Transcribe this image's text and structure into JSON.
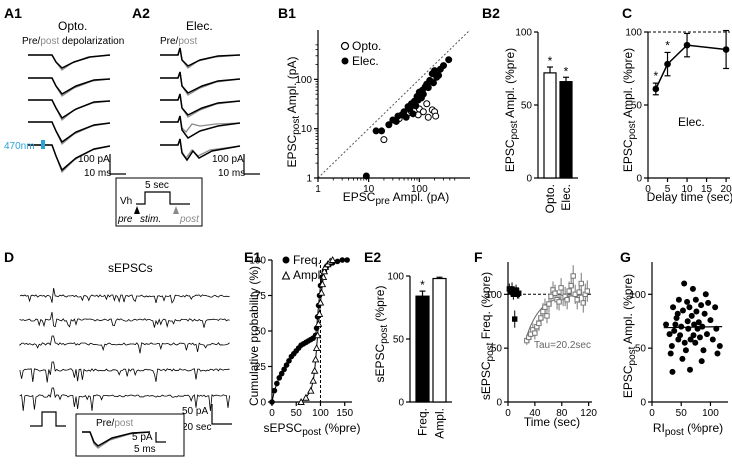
{
  "panels": {
    "a1": {
      "label": "A1",
      "title": "Opto.",
      "sub_pre": "Pre/",
      "sub_post": "post",
      "sub_rest": " depolarization",
      "light": "470nm",
      "scale_y": "100 pA",
      "scale_x": "10 ms"
    },
    "a2": {
      "label": "A2",
      "title": "Elec.",
      "sub_pre": "Pre/",
      "sub_post": "post",
      "scale_y": "100 pA",
      "scale_x": "10 ms",
      "inset": {
        "dur": "5 sec",
        "vh": "Vh",
        "pre": "pre",
        "stim": "stim.",
        "post": "post"
      }
    },
    "b1": {
      "label": "B1",
      "legend": [
        "Opto.",
        "Elec."
      ]
    },
    "b2": {
      "label": "B2"
    },
    "c": {
      "label": "C",
      "annot": "Elec."
    },
    "d": {
      "label": "D",
      "title": "sEPSCs",
      "scale_y": "50 pA",
      "scale_x": "20 sec",
      "inset": {
        "pre": "Pre/",
        "post": "post",
        "scale_y": "5 pA",
        "scale_x": "5 ms"
      }
    },
    "e1": {
      "label": "E1",
      "legend": [
        "Freq.",
        "Ampl."
      ]
    },
    "e2": {
      "label": "E2"
    },
    "f": {
      "label": "F",
      "annot": "Tau=20.2sec"
    },
    "g": {
      "label": "G"
    }
  },
  "colors": {
    "post": "#8a8a8a",
    "light": "#2aa4d8",
    "black": "#000000"
  },
  "chart_data": [
    {
      "id": "B1",
      "type": "scatter",
      "xscale": "log",
      "yscale": "log",
      "xlabel": {
        "a": "EPSC",
        "sub": "pre",
        "b": " Ampl. (pA)"
      },
      "ylabel": {
        "a": "EPSC",
        "sub": "post",
        "b": " Ampl. (pA)"
      },
      "xlim": [
        1,
        1000
      ],
      "ylim": [
        1,
        1000
      ],
      "xticks": [
        1,
        10,
        100
      ],
      "yticks": [
        1,
        10,
        100
      ],
      "series": [
        {
          "name": "Opto.",
          "marker": "open",
          "points": [
            [
              20,
              6
            ],
            [
              40,
              16
            ],
            [
              55,
              19
            ],
            [
              62,
              21
            ],
            [
              70,
              22
            ],
            [
              80,
              23
            ],
            [
              95,
              19
            ],
            [
              100,
              25
            ],
            [
              120,
              22
            ],
            [
              140,
              32
            ],
            [
              150,
              17
            ],
            [
              180,
              24
            ],
            [
              200,
              22
            ],
            [
              210,
              18
            ]
          ]
        },
        {
          "name": "Elec.",
          "marker": "filled",
          "points": [
            [
              9,
              1.1
            ],
            [
              14,
              9
            ],
            [
              18,
              9
            ],
            [
              25,
              12
            ],
            [
              30,
              15
            ],
            [
              35,
              14
            ],
            [
              38,
              18
            ],
            [
              45,
              19
            ],
            [
              50,
              22
            ],
            [
              55,
              17
            ],
            [
              60,
              28
            ],
            [
              65,
              25
            ],
            [
              70,
              32
            ],
            [
              75,
              20
            ],
            [
              80,
              36
            ],
            [
              85,
              29
            ],
            [
              90,
              45
            ],
            [
              95,
              38
            ],
            [
              100,
              55
            ],
            [
              110,
              42
            ],
            [
              115,
              60
            ],
            [
              120,
              50
            ],
            [
              130,
              70
            ],
            [
              140,
              80
            ],
            [
              150,
              68
            ],
            [
              160,
              95
            ],
            [
              170,
              90
            ],
            [
              180,
              130
            ],
            [
              190,
              85
            ],
            [
              200,
              150
            ],
            [
              220,
              110
            ],
            [
              240,
              120
            ],
            [
              260,
              160
            ],
            [
              300,
              190
            ],
            [
              380,
              250
            ]
          ]
        }
      ]
    },
    {
      "id": "B2",
      "type": "bar",
      "ylabel": {
        "a": "EPSC",
        "sub": "post",
        "b": " Ampl. (%pre)"
      },
      "categories": [
        "Opto.",
        "Elec."
      ],
      "values": [
        72,
        66
      ],
      "errors": [
        4,
        3
      ],
      "fills": [
        "#ffffff",
        "#000000"
      ],
      "sig": [
        "*",
        "*"
      ],
      "ylim": [
        0,
        100
      ],
      "yticks": [
        0,
        50,
        100
      ]
    },
    {
      "id": "C",
      "type": "line",
      "ylabel": {
        "a": "EPSC",
        "sub": "post",
        "b": " Ampl. (%pre)"
      },
      "xlabel": "Delay time (sec)",
      "x": [
        2,
        5,
        10,
        20
      ],
      "values": [
        61,
        78,
        91,
        88
      ],
      "errors": [
        4,
        8,
        8,
        13
      ],
      "sig": [
        "*",
        "*",
        "",
        ""
      ],
      "xlim": [
        0,
        21
      ],
      "ylim": [
        0,
        100
      ],
      "xticks": [
        0,
        5,
        10,
        15,
        20
      ],
      "yticks": [
        0,
        50,
        100
      ],
      "ref": 100
    },
    {
      "id": "E1",
      "type": "line",
      "ylabel": "Cumulative probability (%)",
      "xlabel": {
        "a": "sEPSC",
        "sub": "post",
        "b": " (%pre)"
      },
      "xlim": [
        0,
        165
      ],
      "ylim": [
        0,
        100
      ],
      "xticks": [
        0,
        50,
        100,
        150
      ],
      "yticks": [
        0,
        25,
        50,
        75,
        100
      ],
      "ref_x": 100,
      "series": [
        {
          "name": "Freq.",
          "marker": "filled",
          "x": [
            0,
            5,
            10,
            15,
            20,
            25,
            30,
            35,
            40,
            45,
            50,
            55,
            60,
            65,
            70,
            75,
            80,
            85,
            90,
            92,
            94,
            96,
            98,
            100,
            104,
            108,
            112,
            118,
            125,
            135,
            145,
            155
          ],
          "y": [
            0,
            8,
            13,
            17,
            20,
            23,
            26,
            29,
            32,
            34,
            36,
            38,
            40,
            41,
            42,
            43,
            44,
            45,
            47,
            52,
            60,
            68,
            75,
            82,
            88,
            92,
            95,
            97,
            98,
            99,
            100,
            100
          ]
        },
        {
          "name": "Ampl.",
          "marker": "open",
          "x": [
            60,
            70,
            80,
            85,
            88,
            90,
            92,
            94,
            96,
            98,
            100,
            102,
            104,
            106,
            108,
            110,
            115,
            120,
            125
          ],
          "y": [
            0,
            3,
            8,
            15,
            22,
            30,
            38,
            47,
            55,
            62,
            70,
            77,
            83,
            88,
            92,
            95,
            97,
            99,
            100
          ]
        }
      ]
    },
    {
      "id": "E2",
      "type": "bar",
      "ylabel": {
        "a": "sEPSC",
        "sub": "post",
        "b": " (%pre)"
      },
      "categories": [
        "Freq.",
        "Ampl."
      ],
      "values": [
        84,
        98
      ],
      "errors": [
        4,
        1
      ],
      "fills": [
        "#000000",
        "#ffffff"
      ],
      "sig": [
        "*",
        ""
      ],
      "ylim": [
        0,
        100
      ],
      "yticks": [
        0,
        50,
        100
      ]
    },
    {
      "id": "F",
      "type": "scatter",
      "ylabel": {
        "a": "sEPSC",
        "sub": "post",
        "b": " Freq. (%pre)"
      },
      "xlabel": "Time (sec)",
      "xlim": [
        0,
        125
      ],
      "ylim": [
        0,
        130
      ],
      "xticks": [
        0,
        40,
        80,
        120
      ],
      "yticks": [
        0,
        50,
        100
      ],
      "ref": 100,
      "series": [
        {
          "name": "pre",
          "marker": "filled",
          "x": [
            2,
            4,
            6,
            8,
            10,
            12,
            14,
            16
          ],
          "y": [
            105,
            103,
            105,
            100,
            77,
            104,
            100,
            101
          ],
          "err": [
            5,
            4,
            6,
            5,
            8,
            5,
            4,
            5
          ]
        },
        {
          "name": "post",
          "marker": "open",
          "x": [
            28,
            31,
            34,
            37,
            40,
            43,
            46,
            49,
            52,
            55,
            58,
            61,
            64,
            67,
            70,
            73,
            76,
            79,
            82,
            85,
            88,
            91,
            94,
            97,
            100,
            103,
            106,
            109,
            112,
            115,
            118
          ],
          "y": [
            57,
            60,
            63,
            67,
            64,
            70,
            73,
            78,
            84,
            88,
            80,
            91,
            98,
            104,
            101,
            95,
            93,
            106,
            97,
            98,
            95,
            103,
            108,
            117,
            100,
            95,
            102,
            110,
            92,
            100,
            103
          ],
          "err": [
            4,
            5,
            5,
            6,
            6,
            6,
            7,
            6,
            8,
            8,
            7,
            8,
            9,
            8,
            8,
            9,
            8,
            9,
            8,
            9,
            9,
            9,
            10,
            10,
            9,
            9,
            10,
            10,
            9,
            10,
            10
          ]
        }
      ]
    },
    {
      "id": "G",
      "type": "scatter",
      "ylabel": {
        "a": "EPSC",
        "sub": "post",
        "b": " Ampl. (%pre)"
      },
      "xlabel": {
        "a": "RI",
        "sub": "post",
        "b": " (%pre)"
      },
      "xlim": [
        0,
        130
      ],
      "ylim": [
        0,
        130
      ],
      "xticks": [
        0,
        50,
        100
      ],
      "yticks": [
        0,
        50,
        100
      ],
      "fit": [
        [
          20,
          69
        ],
        [
          120,
          70
        ]
      ],
      "points": [
        [
          24,
          72
        ],
        [
          30,
          63
        ],
        [
          32,
          45
        ],
        [
          34,
          52
        ],
        [
          35,
          28
        ],
        [
          36,
          88
        ],
        [
          38,
          66
        ],
        [
          40,
          72
        ],
        [
          42,
          78
        ],
        [
          44,
          82
        ],
        [
          45,
          58
        ],
        [
          46,
          95
        ],
        [
          48,
          62
        ],
        [
          50,
          70
        ],
        [
          52,
          40
        ],
        [
          53,
          85
        ],
        [
          55,
          110
        ],
        [
          56,
          55
        ],
        [
          58,
          48
        ],
        [
          60,
          93
        ],
        [
          61,
          75
        ],
        [
          62,
          68
        ],
        [
          64,
          88
        ],
        [
          65,
          30
        ],
        [
          66,
          58
        ],
        [
          68,
          80
        ],
        [
          70,
          105
        ],
        [
          71,
          62
        ],
        [
          72,
          72
        ],
        [
          74,
          55
        ],
        [
          75,
          95
        ],
        [
          76,
          84
        ],
        [
          78,
          68
        ],
        [
          80,
          74
        ],
        [
          82,
          60
        ],
        [
          84,
          90
        ],
        [
          85,
          38
        ],
        [
          86,
          70
        ],
        [
          88,
          48
        ],
        [
          90,
          82
        ],
        [
          92,
          100
        ],
        [
          94,
          63
        ],
        [
          96,
          92
        ],
        [
          100,
          76
        ],
        [
          104,
          58
        ],
        [
          108,
          88
        ],
        [
          110,
          68
        ],
        [
          112,
          45
        ],
        [
          116,
          52
        ]
      ]
    }
  ]
}
